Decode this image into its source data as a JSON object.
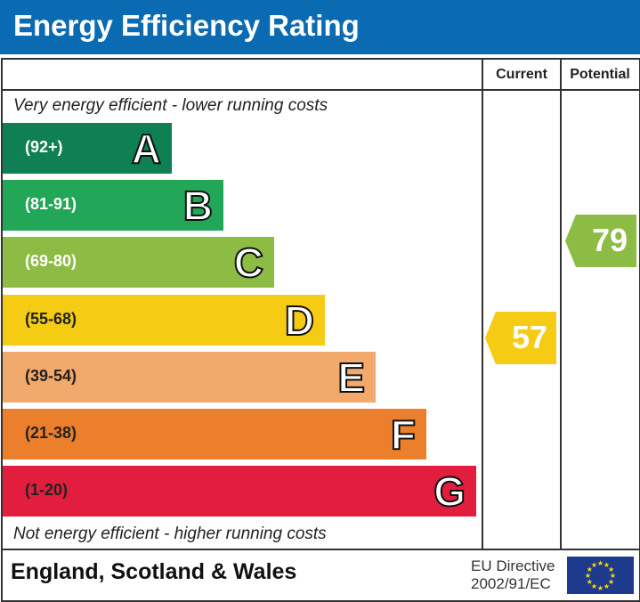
{
  "title": "Energy Efficiency Rating",
  "columns": {
    "current": "Current",
    "potential": "Potential"
  },
  "top_note": "Very energy efficient - lower running costs",
  "bottom_note": "Not energy efficient - higher running costs",
  "footer": {
    "region": "England, Scotland & Wales",
    "directive_line1": "EU Directive",
    "directive_line2": "2002/91/EC"
  },
  "colors": {
    "header": "#0a6ab2",
    "A": "#0f8054",
    "B": "#22a657",
    "C": "#8cbc43",
    "D": "#f5cb14",
    "E": "#f2a96c",
    "F": "#ec7f2b",
    "G": "#e31d3e"
  },
  "chart_data": {
    "type": "bar",
    "bands": [
      {
        "letter": "A",
        "range": "(92+)",
        "color": "#0f8054"
      },
      {
        "letter": "B",
        "range": "(81-91)",
        "color": "#22a657"
      },
      {
        "letter": "C",
        "range": "(69-80)",
        "color": "#8cbc43"
      },
      {
        "letter": "D",
        "range": "(55-68)",
        "color": "#f5cb14"
      },
      {
        "letter": "E",
        "range": "(39-54)",
        "color": "#f2a96c"
      },
      {
        "letter": "F",
        "range": "(21-38)",
        "color": "#ec7f2b"
      },
      {
        "letter": "G",
        "range": "(1-20)",
        "color": "#e31d3e"
      }
    ],
    "current": {
      "value": "57",
      "band": "D",
      "color": "#f5cb14"
    },
    "potential": {
      "value": "79",
      "band": "C",
      "color": "#8cbc43"
    }
  }
}
